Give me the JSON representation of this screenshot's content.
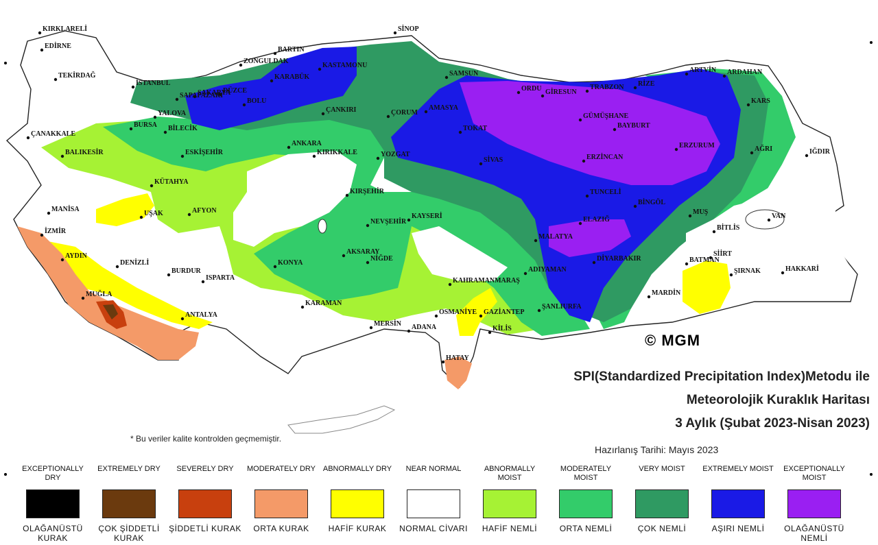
{
  "logo": "© MGM",
  "title": {
    "line1": "SPI(Standardized Precipitation Index)Metodu ile",
    "line2": "Meteorolojik Kuraklık Haritası",
    "line3": "3 Aylık (Şubat 2023-Nisan 2023)"
  },
  "prepared_date": "Hazırlanış Tarihi: Mayıs 2023",
  "footnote": "* Bu veriler kalite kontrolden geçmemiştir.",
  "cities": [
    {
      "name": "KIRKLARELİ"
    },
    {
      "name": "EDİRNE"
    },
    {
      "name": "TEKİRDAĞ"
    },
    {
      "name": "İSTANBUL"
    },
    {
      "name": "ÇANAKKALE"
    },
    {
      "name": "YALOVA"
    },
    {
      "name": "BURSA"
    },
    {
      "name": "BALIKESİR"
    },
    {
      "name": "BİLECİK"
    },
    {
      "name": "SAKARYA"
    },
    {
      "name": "SAPAPAZARI"
    },
    {
      "name": "DÜZCE"
    },
    {
      "name": "BOLU"
    },
    {
      "name": "ZONGULDAK"
    },
    {
      "name": "BARTIN"
    },
    {
      "name": "KARABÜK"
    },
    {
      "name": "KASTAMONU"
    },
    {
      "name": "SİNOP"
    },
    {
      "name": "SAMSUN"
    },
    {
      "name": "ORDU"
    },
    {
      "name": "GİRESUN"
    },
    {
      "name": "TRABZON"
    },
    {
      "name": "RİZE"
    },
    {
      "name": "ARTVİN"
    },
    {
      "name": "ARDAHAN"
    },
    {
      "name": "KARS"
    },
    {
      "name": "IĞDIR"
    },
    {
      "name": "AĞRI"
    },
    {
      "name": "ERZURUM"
    },
    {
      "name": "BAYBURT"
    },
    {
      "name": "GÜMÜŞHANE"
    },
    {
      "name": "ERZİNCAN"
    },
    {
      "name": "ÇANKIRI"
    },
    {
      "name": "ÇORUM"
    },
    {
      "name": "AMASYA"
    },
    {
      "name": "TOKAT"
    },
    {
      "name": "SİVAS"
    },
    {
      "name": "YOZGAT"
    },
    {
      "name": "KIRIKKALE"
    },
    {
      "name": "ANKARA"
    },
    {
      "name": "ESKİŞEHİR"
    },
    {
      "name": "KÜTAHYA"
    },
    {
      "name": "MANİSA"
    },
    {
      "name": "İZMİR"
    },
    {
      "name": "UŞAK"
    },
    {
      "name": "AFYON"
    },
    {
      "name": "AYDIN"
    },
    {
      "name": "DENİZLİ"
    },
    {
      "name": "MUĞLA"
    },
    {
      "name": "BURDUR"
    },
    {
      "name": "ISPARTA"
    },
    {
      "name": "ANTALYA"
    },
    {
      "name": "KONYA"
    },
    {
      "name": "KARAMAN"
    },
    {
      "name": "AKSARAY"
    },
    {
      "name": "NEVŞEHİR"
    },
    {
      "name": "KIRŞEHİR"
    },
    {
      "name": "KAYSERİ"
    },
    {
      "name": "NİĞDE"
    },
    {
      "name": "MERSİN"
    },
    {
      "name": "ADANA"
    },
    {
      "name": "OSMANİYE"
    },
    {
      "name": "HATAY"
    },
    {
      "name": "KAHRAMANMARAŞ"
    },
    {
      "name": "GAZİANTEP"
    },
    {
      "name": "KİLİS"
    },
    {
      "name": "ADIYAMAN"
    },
    {
      "name": "ŞANLIURFA"
    },
    {
      "name": "MALATYA"
    },
    {
      "name": "ELAZIĞ"
    },
    {
      "name": "TUNCELİ"
    },
    {
      "name": "BİNGÖL"
    },
    {
      "name": "MUŞ"
    },
    {
      "name": "BİTLİS"
    },
    {
      "name": "VAN"
    },
    {
      "name": "DİYARBAKIR"
    },
    {
      "name": "BATMAN"
    },
    {
      "name": "SİİRT"
    },
    {
      "name": "ŞIRNAK"
    },
    {
      "name": "HAKKARİ"
    },
    {
      "name": "MARDİN"
    }
  ],
  "legend": [
    {
      "top": "EXCEPTIONALLY DRY",
      "bottom": "OLAĞANÜSTÜ KURAK",
      "color": "#000000"
    },
    {
      "top": "EXTREMELY DRY",
      "bottom": "ÇOK ŞİDDETLİ KURAK",
      "color": "#6b3a0e"
    },
    {
      "top": "SEVERELY DRY",
      "bottom": "ŞİDDETLİ KURAK",
      "color": "#c8400e"
    },
    {
      "top": "MODERATELY DRY",
      "bottom": "ORTA KURAK",
      "color": "#f49a68"
    },
    {
      "top": "ABNORMALLY DRY",
      "bottom": "HAFİF KURAK",
      "color": "#ffff00"
    },
    {
      "top": "NEAR NORMAL",
      "bottom": "NORMAL CİVARI",
      "color": "#ffffff"
    },
    {
      "top": "ABNORMALLY MOIST",
      "bottom": "HAFİF NEMLİ",
      "color": "#a6f234"
    },
    {
      "top": "MODERATELY MOIST",
      "bottom": "ORTA NEMLİ",
      "color": "#33cc6a"
    },
    {
      "top": "VERY MOIST",
      "bottom": "ÇOK NEMLİ",
      "color": "#2f9a62"
    },
    {
      "top": "EXTREMELY MOIST",
      "bottom": "AŞIRI NEMLİ",
      "color": "#1a1ae6"
    },
    {
      "top": "EXCEPTIONALLY MOIST",
      "bottom": "OLAĞANÜSTÜ NEMLİ",
      "color": "#9a1ff2"
    }
  ]
}
